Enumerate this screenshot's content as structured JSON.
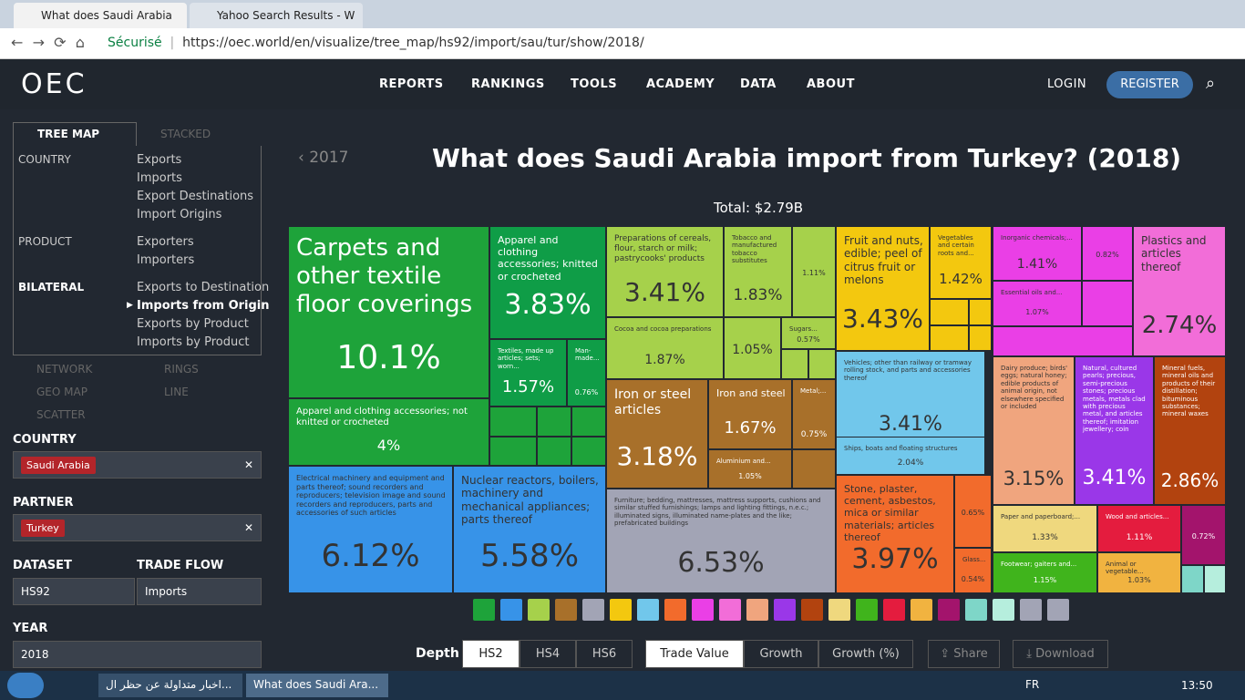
{
  "browser": {
    "tabs": [
      "What does Saudi Arabia",
      "Yahoo Search Results - W"
    ],
    "secure": "Sécurisé",
    "url": "https://oec.world/en/visualize/tree_map/hs92/import/sau/tur/show/2018/"
  },
  "nav": {
    "logo": "OEC",
    "menu": [
      "REPORTS",
      "RANKINGS",
      "TOOLS",
      "ACADEMY",
      "DATA",
      "ABOUT"
    ],
    "login": "LOGIN",
    "register": "REGISTER"
  },
  "sidebar": {
    "tabs": [
      "TREE MAP",
      "STACKED"
    ],
    "groups": [
      {
        "title": "COUNTRY",
        "items": [
          "Exports",
          "Imports",
          "Export Destinations",
          "Import Origins"
        ]
      },
      {
        "title": "PRODUCT",
        "items": [
          "Exporters",
          "Importers"
        ]
      },
      {
        "title": "BILATERAL",
        "items": [
          "Exports to Destination",
          "Imports from Origin",
          "Exports by Product",
          "Imports by Product"
        ]
      }
    ],
    "views": [
      "NETWORK",
      "RINGS",
      "GEO MAP",
      "LINE",
      "SCATTER"
    ],
    "country_label": "COUNTRY",
    "country": "Saudi Arabia",
    "partner_label": "PARTNER",
    "partner": "Turkey",
    "dataset_label": "DATASET",
    "dataset": "HS92",
    "flow_label": "TRADE FLOW",
    "flow": "Imports",
    "year_label": "YEAR",
    "year": "2018"
  },
  "main": {
    "prev": "2017",
    "title": "What does Saudi Arabia import from Turkey? (2018)",
    "total": "Total: $2.79B",
    "tiles": [
      {
        "label": "Carpets and other textile floor coverings",
        "value": "10.1%"
      },
      {
        "label": "Apparel and clothing accessories; knitted or crocheted",
        "value": "3.83%"
      },
      {
        "label": "Apparel and clothing accessories; not knitted or crocheted",
        "value": "4%"
      },
      {
        "label": "Textiles, made up articles; sets; worn...",
        "value": "1.57%"
      },
      {
        "label": "Man-made...",
        "value": "0.76%"
      },
      {
        "label": "Electrical machinery and equipment and parts thereof; sound recorders and reproducers; television image and sound recorders and reproducers, parts and accessories of such articles",
        "value": "6.12%"
      },
      {
        "label": "Nuclear reactors, boilers, machinery and mechanical appliances; parts thereof",
        "value": "5.58%"
      },
      {
        "label": "Preparations of cereals, flour, starch or milk; pastrycooks' products",
        "value": "3.41%"
      },
      {
        "label": "Tobacco and manufactured tobacco substitutes",
        "value": "1.83%"
      },
      {
        "value": "1.11%"
      },
      {
        "label": "Cocoa and cocoa preparations",
        "value": "1.87%"
      },
      {
        "value": "1.05%"
      },
      {
        "label": "Sugars...",
        "value": "0.57%"
      },
      {
        "label": "Iron or steel articles",
        "value": "3.18%"
      },
      {
        "label": "Iron and steel",
        "value": "1.67%"
      },
      {
        "label": "Metal;...",
        "value": "0.75%"
      },
      {
        "label": "Aluminium and...",
        "value": "1.05%"
      },
      {
        "label": "Furniture; bedding, mattresses, mattress supports, cushions and similar stuffed furnishings; lamps and lighting fittings, n.e.c.; illuminated signs, illuminated name-plates and the like; prefabricated buildings",
        "value": "6.53%"
      },
      {
        "label": "Fruit and nuts, edible; peel of citrus fruit or melons",
        "value": "3.43%"
      },
      {
        "label": "Vegetables and certain roots and...",
        "value": "1.42%"
      },
      {
        "label": "Vehicles; other than railway or tramway rolling stock, and parts and accessories thereof",
        "value": "3.41%"
      },
      {
        "label": "Ships, boats and floating structures",
        "value": "2.04%"
      },
      {
        "label": "Stone, plaster, cement, asbestos, mica or similar materials; articles thereof",
        "value": "3.97%"
      },
      {
        "value": "0.65%"
      },
      {
        "label": "Glass...",
        "value": "0.54%"
      },
      {
        "label": "Inorganic chemicals;...",
        "value": "1.41%"
      },
      {
        "value": "0.82%"
      },
      {
        "label": "Essential oils and...",
        "value": "1.07%"
      },
      {
        "label": "Plastics and articles thereof",
        "value": "2.74%"
      },
      {
        "label": "Dairy produce; birds' eggs; natural honey; edible products of animal origin, not elsewhere specified or included",
        "value": "3.15%"
      },
      {
        "label": "Natural, cultured pearls; precious, semi-precious stones; precious metals, metals clad with precious metal, and articles thereof; imitation jewellery; coin",
        "value": "3.41%"
      },
      {
        "label": "Mineral fuels, mineral oils and products of their distillation; bituminous substances; mineral waxes",
        "value": "2.86%"
      },
      {
        "label": "Paper and paperboard;...",
        "value": "1.33%"
      },
      {
        "label": "Wood and articles...",
        "value": "1.11%"
      },
      {
        "value": "0.72%"
      },
      {
        "label": "Footwear; gaiters and...",
        "value": "1.15%"
      },
      {
        "label": "Animal or vegetable...",
        "value": "1.03%"
      }
    ],
    "depth_label": "Depth",
    "depths": [
      "HS2",
      "HS4",
      "HS6"
    ],
    "measures": [
      "Trade Value",
      "Growth",
      "Growth (%)"
    ],
    "share": "Share",
    "download": "Download"
  },
  "taskbar": {
    "items": [
      "اخبار متداولة عن حظر ال...",
      "What does Saudi Ara..."
    ],
    "lang": "FR",
    "time": "13:50"
  }
}
